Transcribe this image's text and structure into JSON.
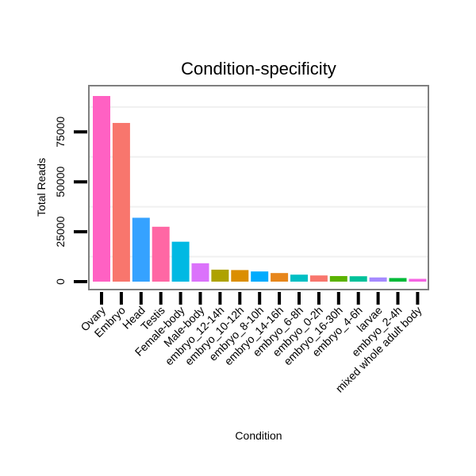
{
  "chart_data": {
    "type": "bar",
    "title": "Condition-specificity",
    "xlabel": "Condition",
    "ylabel": "Total Reads",
    "ylim": [
      0,
      96000
    ],
    "yticks": [
      0,
      25000,
      50000,
      75000
    ],
    "grid": true,
    "categories": [
      "Ovary",
      "Embryo",
      "Head",
      "Testis",
      "Female-body",
      "Male-body",
      "embryo_12-14h",
      "embryo_10-12h",
      "embryo_8-10h",
      "embryo_14-16h",
      "embryo_6-8h",
      "embryo_0-2h",
      "embryo_16-30h",
      "embryo_4-6h",
      "larvae",
      "embryo_2-4h",
      "mixed whole adult body"
    ],
    "values": [
      93000,
      79500,
      32000,
      27500,
      20000,
      9200,
      6000,
      5800,
      5100,
      4300,
      3500,
      3100,
      2800,
      2700,
      2100,
      1800,
      1400
    ],
    "colors": [
      "#FF61C3",
      "#F8766D",
      "#35A2FF",
      "#FF67A4",
      "#00B9E3",
      "#DB72FB",
      "#AEA200",
      "#DB8E00",
      "#00ABFD",
      "#E7861B",
      "#00BFC4",
      "#F8766D",
      "#5BB300",
      "#00C19A",
      "#A58AFF",
      "#00BA38",
      "#F564E3"
    ]
  }
}
